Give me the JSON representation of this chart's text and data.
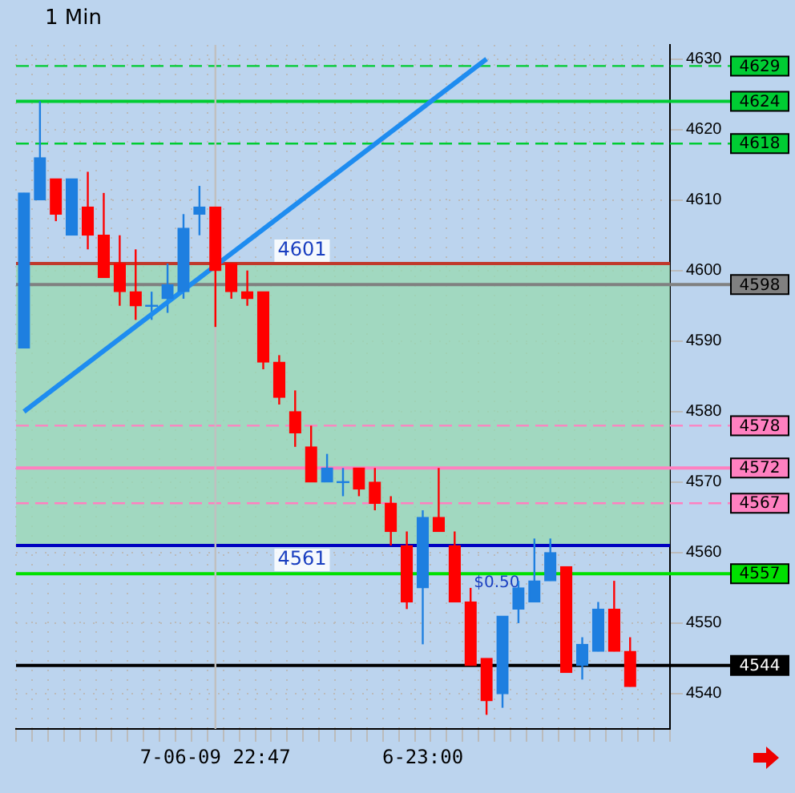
{
  "chart_data": {
    "type": "candlestick",
    "title": "1 Min",
    "categories": [
      null,
      null,
      null,
      null,
      null,
      null,
      null,
      null,
      null,
      null,
      null,
      null,
      "7-06-09 22:47",
      null,
      null,
      null,
      null,
      null,
      null,
      null,
      null,
      null,
      null,
      null,
      null,
      "6-23:00",
      null,
      null,
      null,
      null,
      null,
      null,
      null,
      null,
      null,
      null,
      null,
      null,
      null,
      null,
      null
    ],
    "ohlc": [
      [
        4589,
        4611,
        4589,
        4611
      ],
      [
        4610,
        4624,
        4610,
        4616
      ],
      [
        4613,
        4613,
        4607,
        4608
      ],
      [
        4605,
        4613,
        4605,
        4613
      ],
      [
        4609,
        4614,
        4603,
        4605
      ],
      [
        4605,
        4611,
        4599,
        4599
      ],
      [
        4601,
        4605,
        4595,
        4597
      ],
      [
        4597,
        4603,
        4593,
        4595
      ],
      [
        4595,
        4597,
        4593,
        4595
      ],
      [
        4596,
        4601,
        4594,
        4598
      ],
      [
        4597,
        4608,
        4596,
        4606
      ],
      [
        4608,
        4612,
        4605,
        4609
      ],
      [
        4609,
        4609,
        4592,
        4600
      ],
      [
        4601,
        4601,
        4596,
        4597
      ],
      [
        4597,
        4600,
        4595,
        4596
      ],
      [
        4597,
        4597,
        4586,
        4587
      ],
      [
        4587,
        4588,
        4581,
        4582
      ],
      [
        4580,
        4583,
        4575,
        4577
      ],
      [
        4575,
        4578,
        4570,
        4570
      ],
      [
        4570,
        4574,
        4570,
        4572
      ],
      [
        4570,
        4572,
        4568,
        4570
      ],
      [
        4572,
        4572,
        4568,
        4569
      ],
      [
        4570,
        4572,
        4566,
        4567
      ],
      [
        4567,
        4568,
        4561,
        4563
      ],
      [
        4561,
        4563,
        4552,
        4553
      ],
      [
        4555,
        4566,
        4547,
        4565
      ],
      [
        4565,
        4572,
        4563,
        4563
      ],
      [
        4561,
        4563,
        4553,
        4553
      ],
      [
        4553,
        4555,
        4544,
        4544
      ],
      [
        4545,
        4545,
        4537,
        4539
      ],
      [
        4540,
        4551,
        4538,
        4551
      ],
      [
        4552,
        4556,
        4550,
        4555
      ],
      [
        4553,
        4562,
        4553,
        4556
      ],
      [
        4556,
        4562,
        4556,
        4560
      ],
      [
        4558,
        4558,
        4543,
        4543
      ],
      [
        4544,
        4548,
        4542,
        4547
      ],
      [
        4546,
        4553,
        4546,
        4552
      ],
      [
        4552,
        4556,
        4546,
        4546
      ],
      [
        4546,
        4548,
        4541,
        4541
      ],
      null,
      null
    ],
    "colors": [
      "#1e7fe0",
      "#1e7fe0",
      "#ff0000",
      "#1e7fe0",
      "#ff0000",
      "#ff0000",
      "#ff0000",
      "#ff0000",
      "#1e7fe0",
      "#1e7fe0",
      "#1e7fe0",
      "#1e7fe0",
      "#ff0000",
      "#ff0000",
      "#ff0000",
      "#ff0000",
      "#ff0000",
      "#ff0000",
      "#ff0000",
      "#1e7fe0",
      "#1e7fe0",
      "#ff0000",
      "#ff0000",
      "#ff0000",
      "#ff0000",
      "#1e7fe0",
      "#ff0000",
      "#ff0000",
      "#ff0000",
      "#ff0000",
      "#1e7fe0",
      "#1e7fe0",
      "#1e7fe0",
      "#1e7fe0",
      "#ff0000",
      "#1e7fe0",
      "#1e7fe0",
      "#ff0000",
      "#ff0000",
      null,
      null
    ],
    "series": [
      {
        "type": "line",
        "color": "#1e8cf0",
        "values": [
          4580,
          null,
          null,
          null,
          null,
          null,
          null,
          null,
          null,
          null,
          null,
          null,
          null,
          null,
          null,
          null,
          null,
          null,
          null,
          null,
          null,
          null,
          null,
          null,
          null,
          null,
          null,
          null,
          null,
          4630,
          null,
          null,
          null,
          null,
          null,
          null,
          null,
          null,
          null,
          null,
          null
        ]
      }
    ],
    "ylim": [
      4535,
      4632
    ],
    "yticks": [
      4540,
      4550,
      4560,
      4570,
      4580,
      4590,
      4600,
      4610,
      4620,
      4630
    ],
    "grid": true,
    "legend": false,
    "bands": [
      {
        "axis": "y",
        "from": 4561,
        "to": 4601,
        "color": "#9ad8b4"
      }
    ],
    "ref_lines": [
      {
        "axis": "y",
        "value": 4629,
        "label": "4629",
        "color": "#00cc33",
        "line_style": "dashed"
      },
      {
        "axis": "y",
        "value": 4624,
        "label": "4624",
        "color": "#00cc33",
        "line_style": "solid"
      },
      {
        "axis": "y",
        "value": 4618,
        "label": "4618",
        "color": "#00cc33",
        "line_style": "dashed"
      },
      {
        "axis": "y",
        "value": 4601,
        "color": "#c0392b",
        "line_style": "solid"
      },
      {
        "axis": "y",
        "value": 4598,
        "label": "4598",
        "color": "#808080",
        "line_style": "solid"
      },
      {
        "axis": "y",
        "value": 4578,
        "label": "4578",
        "color": "#ff80c0",
        "line_style": "dashed"
      },
      {
        "axis": "y",
        "value": 4572,
        "label": "4572",
        "color": "#ff80c0",
        "line_style": "solid"
      },
      {
        "axis": "y",
        "value": 4567,
        "label": "4567",
        "color": "#ff80c0",
        "line_style": "dashed"
      },
      {
        "axis": "y",
        "value": 4561,
        "color": "#0000c0",
        "line_style": "solid"
      },
      {
        "axis": "y",
        "value": 4557,
        "label": "4557",
        "color": "#00e000",
        "line_style": "solid"
      },
      {
        "axis": "y",
        "value": 4544,
        "label": "4544",
        "color": "#000000",
        "line_style": "solid"
      },
      {
        "axis": "x",
        "value": "7-06-09 22:47",
        "color": "#c0c0c0",
        "line_style": "solid"
      }
    ],
    "annotations": [
      {
        "text": "4601",
        "y": 4601
      },
      {
        "text": "4561",
        "y": 4561
      },
      "$0.50"
    ]
  }
}
